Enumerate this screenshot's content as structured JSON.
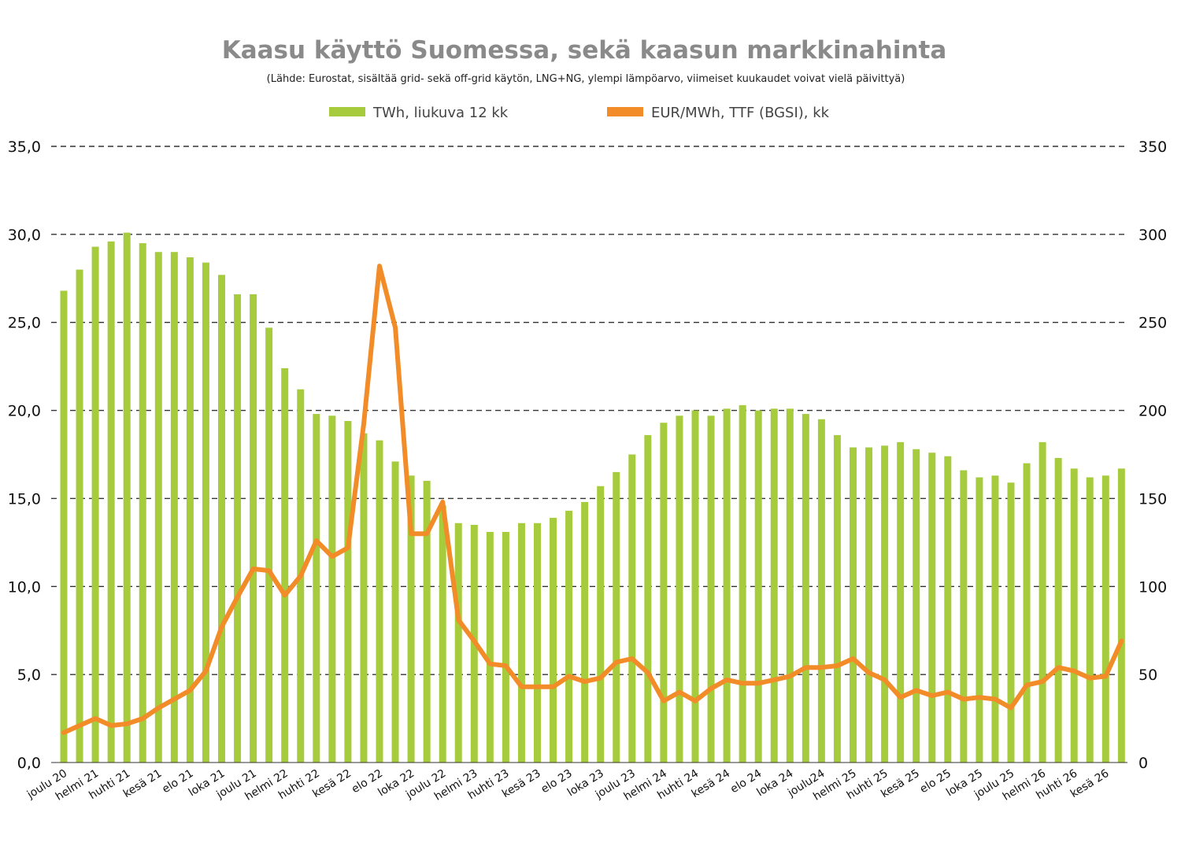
{
  "chart_data": {
    "type": "bar+line",
    "title": "Kaasu käyttö Suomessa, sekä kaasun markkinahinta",
    "subtitle": "(Lähde: Eurostat, sisältää grid- sekä off-grid käytön, LNG+NG, ylempi lämpöarvo, viimeiset kuukaudet voivat vielä päivittyä)",
    "legend": {
      "placement": "top-center",
      "bar_label": "TWh, liukuva 12 kk",
      "line_label": "EUR/MWh, TTF (BGSI), kk"
    },
    "colors": {
      "bar": "#a6cc3e",
      "line": "#f28c28",
      "grid": "#333333"
    },
    "grid": true,
    "y_left": {
      "min": 0,
      "max": 35,
      "ticks": [
        "0,0",
        "5,0",
        "10,0",
        "15,0",
        "20,0",
        "25,0",
        "30,0",
        "35,0"
      ]
    },
    "y_right": {
      "min": 0,
      "max": 350,
      "ticks": [
        "0",
        "50",
        "100",
        "150",
        "200",
        "250",
        "300",
        "350"
      ]
    },
    "x_tick_labels": [
      {
        "i": 0,
        "label": "joulu 20"
      },
      {
        "i": 2,
        "label": "helmi 21"
      },
      {
        "i": 4,
        "label": "huhti 21"
      },
      {
        "i": 6,
        "label": "kesä 21"
      },
      {
        "i": 8,
        "label": "elo 21"
      },
      {
        "i": 10,
        "label": "loka 21"
      },
      {
        "i": 12,
        "label": "joulu 21"
      },
      {
        "i": 14,
        "label": "helmi 22"
      },
      {
        "i": 16,
        "label": "huhti 22"
      },
      {
        "i": 18,
        "label": "kesä 22"
      },
      {
        "i": 20,
        "label": "elo 22"
      },
      {
        "i": 22,
        "label": "loka 22"
      },
      {
        "i": 24,
        "label": "joulu 22"
      },
      {
        "i": 26,
        "label": "helmi 23"
      },
      {
        "i": 28,
        "label": "huhti 23"
      },
      {
        "i": 30,
        "label": "kesä 23"
      },
      {
        "i": 32,
        "label": "elo 23"
      },
      {
        "i": 34,
        "label": "loka 23"
      },
      {
        "i": 36,
        "label": "joulu 23"
      },
      {
        "i": 38,
        "label": "helmi 24"
      },
      {
        "i": 40,
        "label": "huhti 24"
      },
      {
        "i": 42,
        "label": "kesä 24"
      },
      {
        "i": 44,
        "label": "elo 24"
      },
      {
        "i": 46,
        "label": "loka 24"
      },
      {
        "i": 48,
        "label": "joulu24"
      },
      {
        "i": 50,
        "label": "helmi 25"
      },
      {
        "i": 52,
        "label": "huhti 25"
      },
      {
        "i": 54,
        "label": "kesä 25"
      },
      {
        "i": 56,
        "label": "elo 25"
      },
      {
        "i": 58,
        "label": "loka 25"
      },
      {
        "i": 60,
        "label": "joulu 25"
      },
      {
        "i": 62,
        "label": "helmi 26"
      },
      {
        "i": 64,
        "label": "huhti 26"
      },
      {
        "i": 66,
        "label": "kesä 26"
      }
    ],
    "series": [
      {
        "name": "TWh, liukuva 12 kk",
        "type": "bar",
        "axis": "left",
        "values": [
          26.8,
          28.0,
          29.3,
          29.6,
          30.1,
          29.5,
          29.0,
          29.0,
          28.7,
          28.4,
          27.7,
          26.6,
          26.6,
          24.7,
          22.4,
          21.2,
          19.8,
          19.7,
          19.4,
          18.7,
          18.3,
          17.1,
          16.3,
          16.0,
          14.6,
          13.6,
          13.5,
          13.1,
          13.1,
          13.6,
          13.6,
          13.9,
          14.3,
          14.8,
          15.7,
          16.5,
          17.5,
          18.6,
          19.3,
          19.7,
          20.0,
          19.7,
          20.1,
          20.3,
          20.0,
          20.1,
          20.1,
          19.8,
          19.5,
          18.6,
          17.9,
          17.9,
          18.0,
          18.2,
          17.8,
          17.6,
          17.4,
          16.6,
          16.2,
          16.3,
          15.9,
          17.0,
          18.2,
          17.3,
          16.7,
          16.2,
          16.3,
          16.7
        ]
      },
      {
        "name": "EUR/MWh, TTF (BGSI), kk",
        "type": "line",
        "axis": "right",
        "values": [
          17,
          21,
          25,
          21,
          22,
          25,
          31,
          36,
          41,
          52,
          77,
          94,
          110,
          109,
          95,
          106,
          126,
          117,
          122,
          192,
          282,
          247,
          130,
          130,
          148,
          81,
          69,
          56,
          55,
          43,
          43,
          43,
          49,
          46,
          48,
          57,
          59,
          51,
          35,
          40,
          35,
          42,
          47,
          45,
          45,
          47,
          49,
          54,
          54,
          55,
          59,
          51,
          47,
          37,
          41,
          38,
          40,
          36,
          37,
          36,
          31,
          44,
          46,
          54,
          52,
          48,
          49,
          69
        ]
      }
    ]
  }
}
